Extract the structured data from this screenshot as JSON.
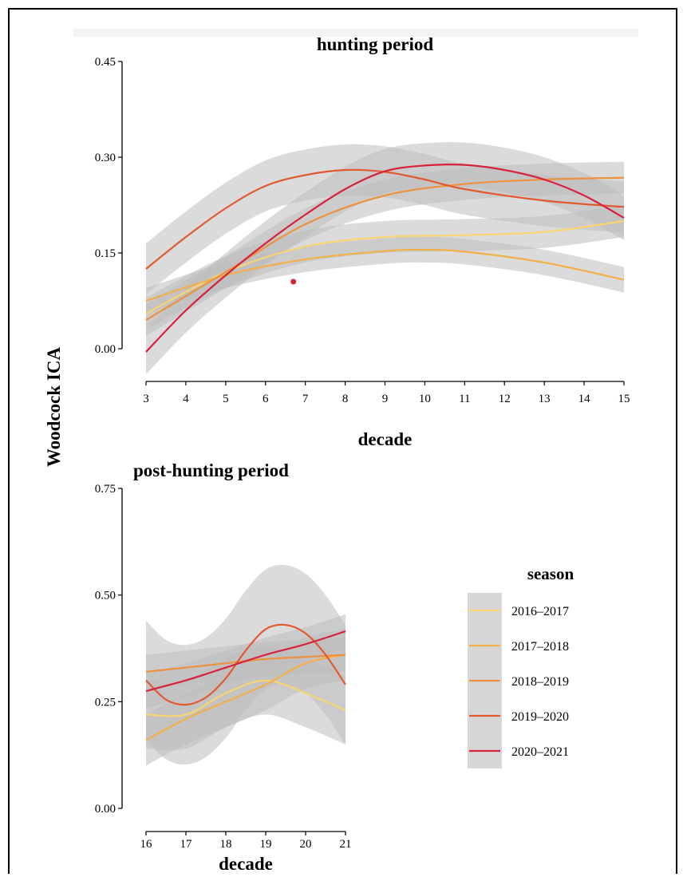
{
  "colors": {
    "2016–2017": "#f7d573",
    "2017–2018": "#f3b04a",
    "2018–2019": "#ec9240",
    "2019–2020": "#e25a30",
    "2020–2021": "#d8213a",
    "ribbon": "#bdbdbd"
  },
  "shared_ylabel": "Woodcock ICA",
  "legend": {
    "title": "season",
    "items": [
      "2016–2017",
      "2017–2018",
      "2018–2019",
      "2019–2020",
      "2020–2021"
    ]
  },
  "chart_data": [
    {
      "type": "line",
      "title": "hunting period",
      "xlabel": "decade",
      "ylabel": "Woodcock ICA",
      "xlim": [
        3,
        15
      ],
      "ylim": [
        0,
        0.45
      ],
      "x_ticks": [
        3,
        4,
        5,
        6,
        7,
        8,
        9,
        10,
        11,
        12,
        13,
        14,
        15
      ],
      "y_ticks": [
        "0.00",
        "0.15",
        "0.30",
        "0.45"
      ],
      "y_tick_values": [
        0,
        0.15,
        0.3,
        0.45
      ],
      "series": [
        {
          "name": "2016–2017",
          "x": [
            3,
            5,
            7,
            9,
            11,
            13,
            15
          ],
          "y": [
            0.055,
            0.12,
            0.16,
            0.175,
            0.178,
            0.183,
            0.2
          ],
          "band": 0.025
        },
        {
          "name": "2017–2018",
          "x": [
            3,
            5,
            7,
            9,
            10,
            11,
            13,
            15
          ],
          "y": [
            0.075,
            0.115,
            0.14,
            0.153,
            0.155,
            0.152,
            0.135,
            0.108
          ],
          "band": 0.02
        },
        {
          "name": "2018–2019",
          "x": [
            3,
            5,
            7,
            9,
            11,
            13,
            15
          ],
          "y": [
            0.045,
            0.12,
            0.195,
            0.24,
            0.258,
            0.265,
            0.268
          ],
          "band": 0.025
        },
        {
          "name": "2019–2020",
          "x": [
            3,
            4,
            5,
            6,
            7,
            8,
            9,
            10,
            11,
            13,
            15
          ],
          "y": [
            0.125,
            0.175,
            0.22,
            0.255,
            0.272,
            0.28,
            0.277,
            0.265,
            0.25,
            0.232,
            0.222
          ],
          "band": 0.04
        },
        {
          "name": "2020–2021",
          "x": [
            3,
            4,
            5,
            6,
            7,
            8,
            9,
            10,
            11,
            12,
            13,
            14,
            15
          ],
          "y": [
            -0.005,
            0.06,
            0.115,
            0.165,
            0.21,
            0.25,
            0.278,
            0.287,
            0.288,
            0.28,
            0.265,
            0.24,
            0.205
          ],
          "band": 0.035
        }
      ],
      "points": [
        {
          "series": "2020–2021",
          "x": 6.7,
          "y": 0.105
        }
      ]
    },
    {
      "type": "line",
      "title": "post-hunting period",
      "xlabel": "decade",
      "ylabel": "Woodcock ICA",
      "xlim": [
        16,
        21
      ],
      "ylim": [
        0,
        0.75
      ],
      "x_ticks": [
        16,
        17,
        18,
        19,
        20,
        21
      ],
      "y_ticks": [
        "0.00",
        "0.25",
        "0.50",
        "0.75"
      ],
      "y_tick_values": [
        0,
        0.25,
        0.5,
        0.75
      ],
      "series": [
        {
          "name": "2016–2017",
          "x": [
            16,
            17,
            18,
            19,
            20,
            21
          ],
          "y": [
            0.22,
            0.22,
            0.27,
            0.3,
            0.27,
            0.23
          ],
          "band": 0.08
        },
        {
          "name": "2017–2018",
          "x": [
            16,
            17,
            18,
            19,
            20,
            21
          ],
          "y": [
            0.16,
            0.21,
            0.25,
            0.29,
            0.34,
            0.36
          ],
          "band": 0.06
        },
        {
          "name": "2018–2019",
          "x": [
            16,
            17,
            18,
            19,
            20,
            21
          ],
          "y": [
            0.32,
            0.33,
            0.34,
            0.35,
            0.355,
            0.36
          ],
          "band": 0.04
        },
        {
          "name": "2019–2020",
          "x": [
            16,
            16.5,
            17,
            17.5,
            18,
            18.5,
            19,
            19.5,
            20,
            20.5,
            21
          ],
          "y": [
            0.3,
            0.255,
            0.243,
            0.26,
            0.305,
            0.37,
            0.42,
            0.43,
            0.41,
            0.36,
            0.29
          ],
          "band": 0.14
        },
        {
          "name": "2020–2021",
          "x": [
            16,
            17,
            18,
            19,
            20,
            21
          ],
          "y": [
            0.275,
            0.3,
            0.33,
            0.36,
            0.385,
            0.415
          ],
          "band": 0.04
        }
      ]
    }
  ]
}
